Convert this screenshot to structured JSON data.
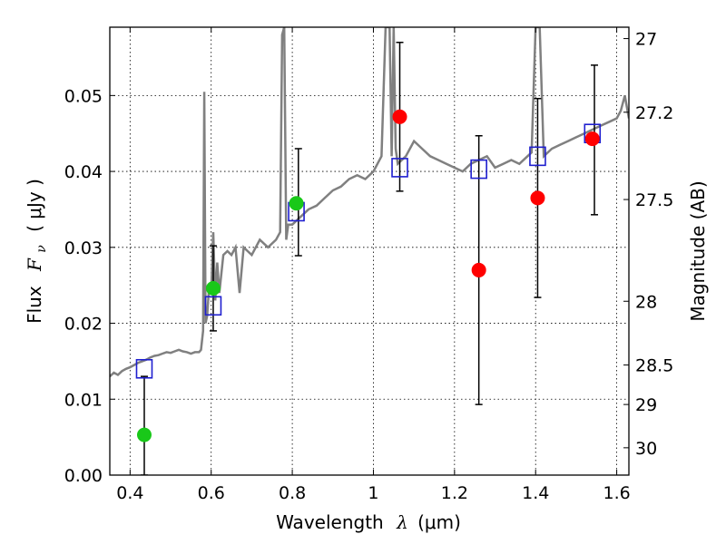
{
  "chart_data": {
    "type": "scatter",
    "title": "",
    "xlabel": {
      "prefix": "Wavelength",
      "symbol": "λ",
      "unit": "(μm)"
    },
    "ylabel": {
      "prefix": "Flux",
      "symbol": "F",
      "sub": "ν",
      "unit": "( μJy )"
    },
    "y2label": "Magnitude (AB)",
    "xlim": [
      0.35,
      1.63
    ],
    "ylim": [
      0.0,
      0.059
    ],
    "xticks": [
      0.4,
      0.6,
      0.8,
      1.0,
      1.2,
      1.4,
      1.6
    ],
    "xtick_labels": [
      "0.4",
      "0.6",
      "0.8",
      "1",
      "1.2",
      "1.4",
      "1.6"
    ],
    "yticks": [
      0.0,
      0.01,
      0.02,
      0.03,
      0.04,
      0.05
    ],
    "ytick_labels": [
      "0.00",
      "0.01",
      "0.02",
      "0.03",
      "0.04",
      "0.05"
    ],
    "y2ticks": [
      {
        "label": "27",
        "flux": 0.0575
      },
      {
        "label": "27.2",
        "flux": 0.0478
      },
      {
        "label": "27.5",
        "flux": 0.0363
      },
      {
        "label": "28",
        "flux": 0.0229
      },
      {
        "label": "28.5",
        "flux": 0.0145
      },
      {
        "label": "29",
        "flux": 0.0093
      },
      {
        "label": "30",
        "flux": 0.0036
      }
    ],
    "grid": true,
    "model_spectrum": {
      "color": "#808080",
      "x": [
        0.35,
        0.36,
        0.37,
        0.38,
        0.39,
        0.4,
        0.41,
        0.42,
        0.43,
        0.44,
        0.45,
        0.46,
        0.47,
        0.48,
        0.49,
        0.5,
        0.51,
        0.52,
        0.53,
        0.54,
        0.55,
        0.56,
        0.57,
        0.575,
        0.58,
        0.583,
        0.586,
        0.59,
        0.595,
        0.6,
        0.605,
        0.61,
        0.615,
        0.62,
        0.63,
        0.64,
        0.65,
        0.66,
        0.67,
        0.68,
        0.69,
        0.7,
        0.72,
        0.74,
        0.76,
        0.77,
        0.775,
        0.78,
        0.785,
        0.79,
        0.8,
        0.82,
        0.84,
        0.86,
        0.88,
        0.9,
        0.92,
        0.94,
        0.96,
        0.98,
        1.0,
        1.02,
        1.03,
        1.04,
        1.045,
        1.05,
        1.055,
        1.06,
        1.08,
        1.1,
        1.12,
        1.14,
        1.16,
        1.18,
        1.2,
        1.22,
        1.24,
        1.26,
        1.28,
        1.3,
        1.32,
        1.34,
        1.36,
        1.38,
        1.39,
        1.4,
        1.41,
        1.42,
        1.44,
        1.46,
        1.48,
        1.5,
        1.52,
        1.54,
        1.56,
        1.58,
        1.6,
        1.61,
        1.62,
        1.63
      ],
      "y": [
        0.013,
        0.0135,
        0.0132,
        0.0137,
        0.014,
        0.0142,
        0.0145,
        0.0148,
        0.015,
        0.0152,
        0.0155,
        0.0157,
        0.0158,
        0.016,
        0.0162,
        0.0161,
        0.0163,
        0.0165,
        0.0163,
        0.0162,
        0.016,
        0.0162,
        0.0162,
        0.0165,
        0.019,
        0.0505,
        0.02,
        0.021,
        0.025,
        0.024,
        0.032,
        0.023,
        0.028,
        0.024,
        0.029,
        0.0295,
        0.029,
        0.03,
        0.024,
        0.03,
        0.0295,
        0.029,
        0.031,
        0.03,
        0.031,
        0.032,
        0.058,
        0.059,
        0.031,
        0.033,
        0.033,
        0.034,
        0.035,
        0.0355,
        0.0365,
        0.0375,
        0.038,
        0.039,
        0.0395,
        0.039,
        0.04,
        0.042,
        0.059,
        0.059,
        0.042,
        0.059,
        0.043,
        0.041,
        0.042,
        0.044,
        0.043,
        0.042,
        0.0415,
        0.041,
        0.0405,
        0.04,
        0.041,
        0.0415,
        0.042,
        0.0405,
        0.041,
        0.0415,
        0.041,
        0.042,
        0.0425,
        0.059,
        0.059,
        0.042,
        0.043,
        0.0435,
        0.044,
        0.0445,
        0.045,
        0.0455,
        0.046,
        0.0465,
        0.047,
        0.048,
        0.05,
        0.047
      ]
    },
    "model_photometry": {
      "color": "#1f1fcf",
      "points": [
        [
          0.435,
          0.014
        ],
        [
          0.605,
          0.0223
        ],
        [
          0.81,
          0.0347
        ],
        [
          1.065,
          0.0405
        ],
        [
          1.26,
          0.0403
        ],
        [
          1.405,
          0.042
        ],
        [
          1.54,
          0.045
        ]
      ]
    },
    "observed_detections": {
      "color": "#19c819",
      "points": [
        [
          0.435,
          0.0053
        ],
        [
          0.605,
          0.0246
        ],
        [
          0.81,
          0.0358
        ]
      ]
    },
    "observed_fits": {
      "color": "#ff0000",
      "points": [
        [
          1.065,
          0.0472
        ],
        [
          1.26,
          0.027
        ],
        [
          1.405,
          0.0365
        ],
        [
          1.54,
          0.0443
        ]
      ]
    },
    "error_bars": [
      {
        "x": 0.435,
        "low": 0.0,
        "high": 0.013
      },
      {
        "x": 0.605,
        "low": 0.019,
        "high": 0.0302
      },
      {
        "x": 0.815,
        "low": 0.0289,
        "high": 0.043
      },
      {
        "x": 1.065,
        "low": 0.0374,
        "high": 0.057
      },
      {
        "x": 1.26,
        "low": 0.0093,
        "high": 0.0447
      },
      {
        "x": 1.405,
        "low": 0.0234,
        "high": 0.0496
      },
      {
        "x": 1.545,
        "low": 0.0343,
        "high": 0.054
      }
    ]
  }
}
